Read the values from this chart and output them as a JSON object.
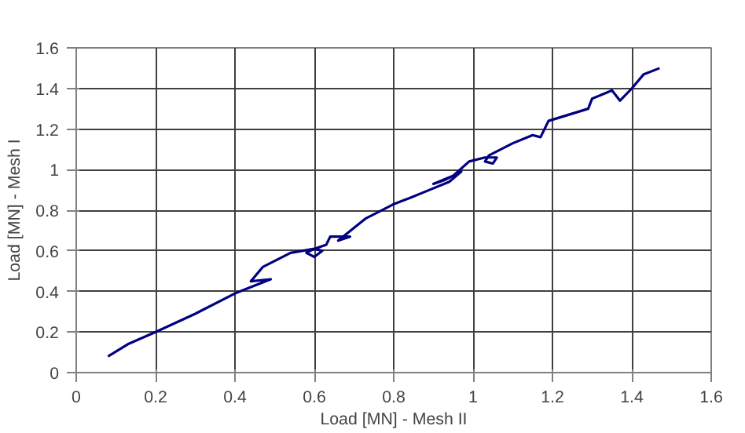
{
  "chart_data": {
    "type": "line",
    "xlabel": "Load [MN] - Mesh II",
    "ylabel": "Load [MN] - Mesh I",
    "xlim": [
      0,
      1.6
    ],
    "ylim": [
      0,
      1.6
    ],
    "xticks": [
      0,
      0.2,
      0.4,
      0.6,
      0.8,
      1,
      1.2,
      1.4,
      1.6
    ],
    "yticks": [
      0,
      0.2,
      0.4,
      0.6,
      0.8,
      1,
      1.2,
      1.4,
      1.6
    ],
    "grid": true,
    "marker": "none",
    "line_style": "solid",
    "series": [
      {
        "color": "#000080",
        "x": [
          0.08,
          0.13,
          0.2,
          0.3,
          0.4,
          0.49,
          0.44,
          0.47,
          0.54,
          0.6,
          0.62,
          0.6,
          0.58,
          0.6,
          0.63,
          0.64,
          0.69,
          0.66,
          0.73,
          0.79,
          0.8,
          0.84,
          0.89,
          0.94,
          0.97,
          0.93,
          0.9,
          0.95,
          0.99,
          1.03,
          1.06,
          1.05,
          1.03,
          1.04,
          1.1,
          1.15,
          1.17,
          1.19,
          1.24,
          1.29,
          1.3,
          1.35,
          1.37,
          1.4,
          1.43,
          1.47
        ],
        "values": [
          0.08,
          0.14,
          0.2,
          0.29,
          0.39,
          0.46,
          0.45,
          0.52,
          0.59,
          0.61,
          0.6,
          0.57,
          0.59,
          0.61,
          0.63,
          0.67,
          0.67,
          0.65,
          0.76,
          0.82,
          0.83,
          0.86,
          0.9,
          0.94,
          0.99,
          0.95,
          0.93,
          0.97,
          1.04,
          1.06,
          1.06,
          1.03,
          1.04,
          1.07,
          1.13,
          1.17,
          1.16,
          1.24,
          1.27,
          1.3,
          1.35,
          1.39,
          1.34,
          1.4,
          1.47,
          1.5
        ]
      }
    ]
  }
}
